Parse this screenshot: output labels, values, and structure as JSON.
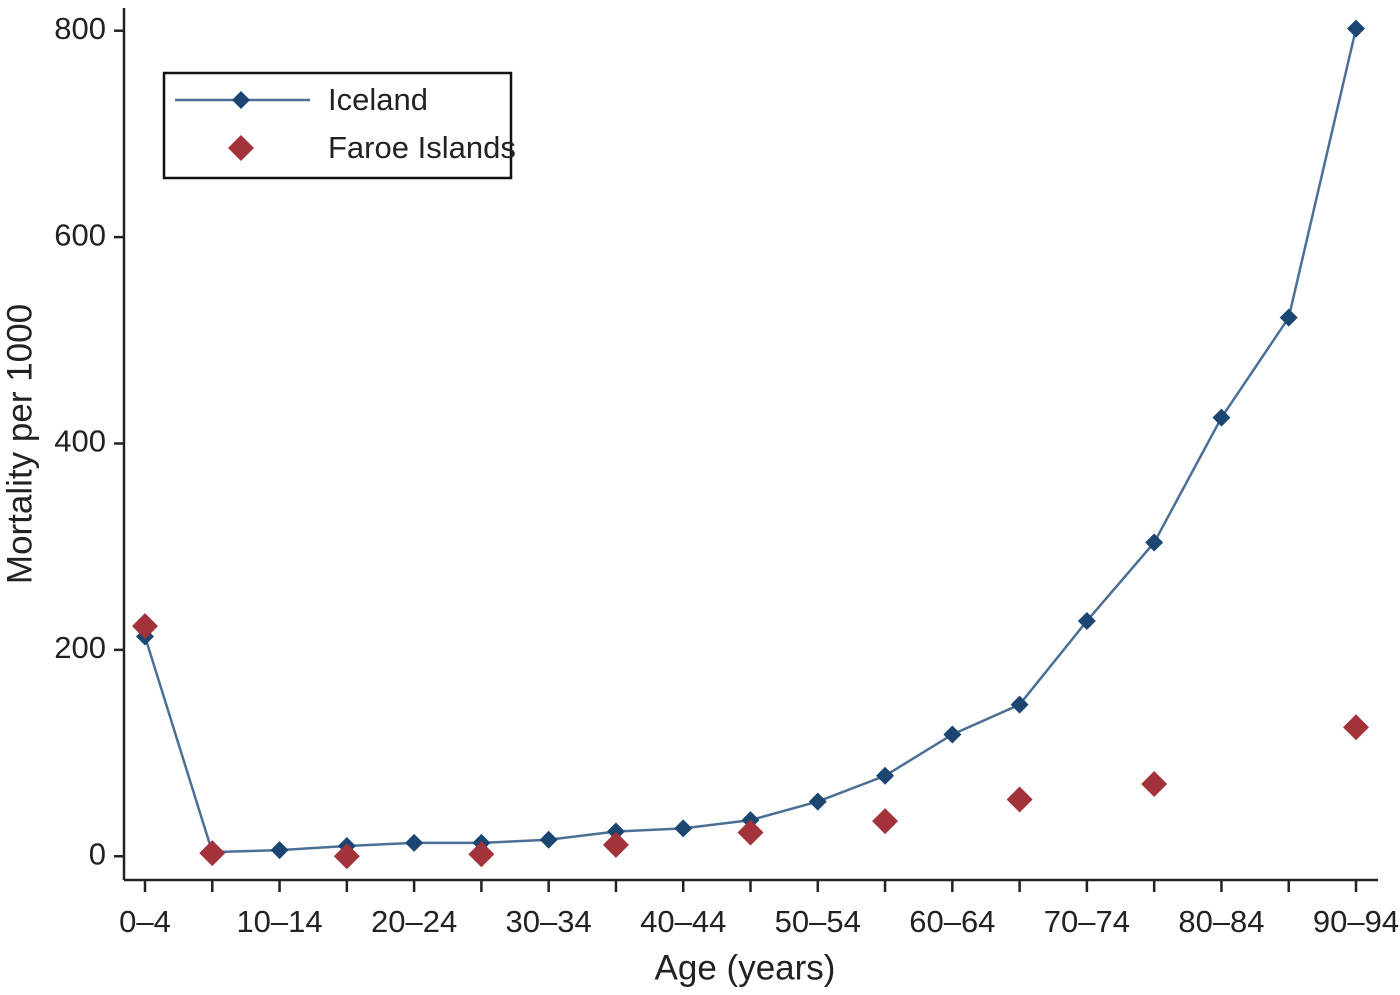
{
  "chart_data": {
    "type": "line",
    "xlabel": "Age (years)",
    "ylabel": "Mortality per 1000",
    "categories": [
      "0–4",
      null,
      "10–14",
      null,
      "20–24",
      null,
      "30–34",
      null,
      "40–44",
      null,
      "50–54",
      null,
      "60–64",
      null,
      "70–74",
      null,
      "80–84",
      null,
      "90–94"
    ],
    "series": [
      {
        "name": "Iceland",
        "color": "#1b4672",
        "line_color": "#4b6f95",
        "mode": "lines+markers",
        "values": [
          213,
          4,
          6,
          10,
          13,
          13,
          16,
          24,
          27,
          35,
          53,
          78,
          118,
          147,
          228,
          304,
          425,
          522,
          802
        ]
      },
      {
        "name": "Faroe Islands",
        "color": "#a3333a",
        "mode": "markers",
        "values": [
          223,
          3,
          null,
          0,
          null,
          2,
          null,
          11,
          null,
          23,
          null,
          34,
          null,
          55,
          null,
          70,
          null,
          null,
          125
        ]
      }
    ],
    "ylim": [
      -23,
      822
    ],
    "yticks": [
      0,
      200,
      400,
      600,
      800
    ],
    "legend": "upper left"
  }
}
